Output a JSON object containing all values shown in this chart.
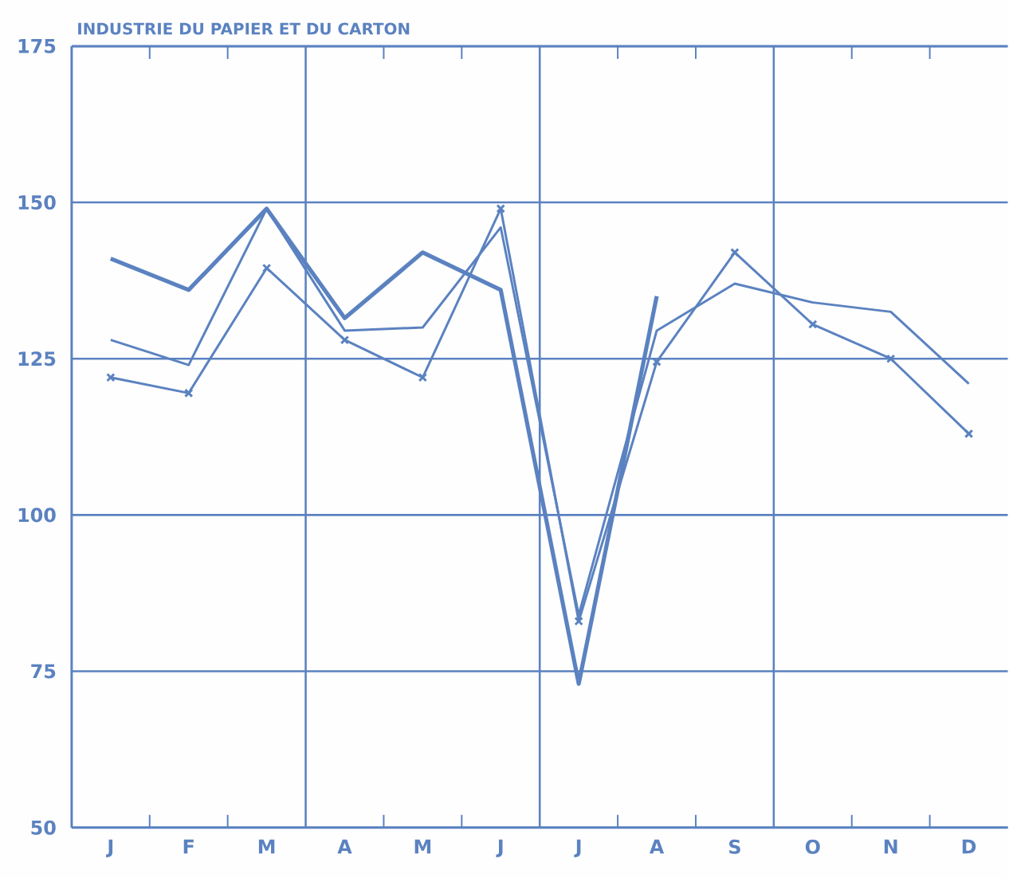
{
  "chart_data": {
    "type": "line",
    "title": "INDUSTRIE DU PAPIER ET DU CARTON",
    "categories": [
      "J",
      "F",
      "M",
      "A",
      "M",
      "J",
      "J",
      "A",
      "S",
      "O",
      "N",
      "D"
    ],
    "series": [
      {
        "color": "#5b82c0",
        "values": [
          141,
          136,
          149,
          131.5,
          142,
          136,
          73,
          135,
          null,
          null,
          null,
          null
        ]
      },
      {
        "color": "#5b82c0",
        "values": [
          128,
          124,
          149,
          129.5,
          130,
          146,
          84,
          129.5,
          137,
          134,
          132.5,
          121
        ]
      },
      {
        "color": "#5b82c0",
        "marker": "cross",
        "values": [
          122,
          119.5,
          139.5,
          128,
          122,
          149,
          83,
          124.5,
          142,
          130.5,
          125,
          113
        ]
      }
    ],
    "ylim": [
      50,
      175
    ],
    "yticks": [
      50,
      75,
      100,
      125,
      150,
      175
    ],
    "grid": true,
    "line_style": "solid"
  }
}
